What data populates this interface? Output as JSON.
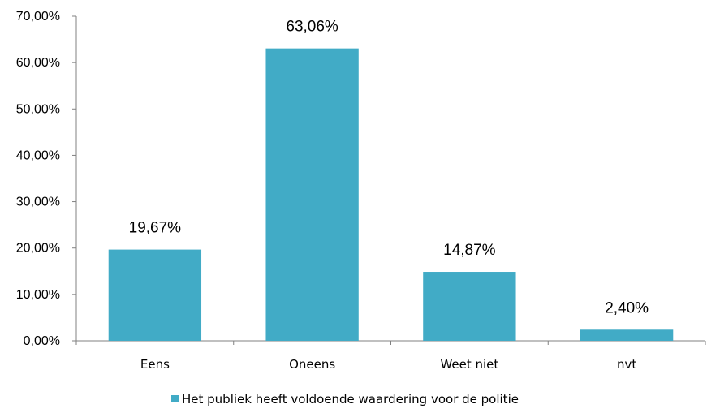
{
  "chart_data": {
    "type": "bar",
    "categories": [
      "Eens",
      "Oneens",
      "Weet niet",
      "nvt"
    ],
    "series": [
      {
        "name": "Het publiek heeft voldoende waardering voor de politie",
        "values": [
          19.67,
          63.06,
          14.87,
          2.4
        ],
        "color": "#41ABC6"
      }
    ],
    "data_labels": [
      "19,67%",
      "63,06%",
      "14,87%",
      "2,40%"
    ],
    "y_ticks": [
      "0,00%",
      "10,00%",
      "20,00%",
      "30,00%",
      "40,00%",
      "50,00%",
      "60,00%",
      "70,00%"
    ],
    "ylim": [
      0,
      70
    ],
    "y_step": 10,
    "grid": false,
    "legend_position": "bottom",
    "axis_color": "#808080"
  }
}
